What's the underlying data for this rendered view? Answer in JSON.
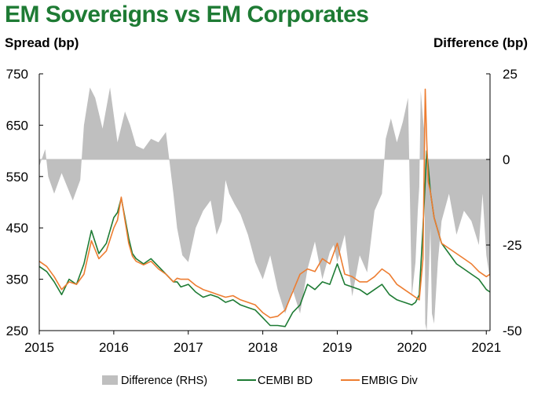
{
  "chart_data": {
    "type": "line",
    "title": "EM Sovereigns vs EM Corporates",
    "ylabel_left": "Spread (bp)",
    "ylabel_right": "Difference (bp)",
    "ylim_left": [
      250,
      750
    ],
    "yticks_left": [
      250,
      350,
      450,
      550,
      650,
      750
    ],
    "ylim_right": [
      -50,
      25
    ],
    "yticks_right": [
      -50,
      -25,
      0,
      25
    ],
    "xlim": [
      2015,
      2021.05
    ],
    "xticks": [
      2015,
      2016,
      2017,
      2018,
      2019,
      2020,
      2021
    ],
    "xtick_labels": [
      "2015",
      "2016",
      "2017",
      "2018",
      "2019",
      "2020",
      "2021"
    ],
    "legend_position": "bottom",
    "series": [
      {
        "name": "Difference (RHS)",
        "axis": "right",
        "kind": "area",
        "color": "#bfbfbf",
        "x": [
          2015.0,
          2015.08,
          2015.12,
          2015.2,
          2015.3,
          2015.45,
          2015.55,
          2015.6,
          2015.68,
          2015.75,
          2015.85,
          2015.95,
          2016.05,
          2016.15,
          2016.22,
          2016.3,
          2016.4,
          2016.5,
          2016.6,
          2016.7,
          2016.8,
          2016.85,
          2016.92,
          2017.0,
          2017.1,
          2017.2,
          2017.3,
          2017.38,
          2017.45,
          2017.5,
          2017.55,
          2017.62,
          2017.7,
          2017.8,
          2017.9,
          2018.0,
          2018.1,
          2018.2,
          2018.3,
          2018.4,
          2018.5,
          2018.6,
          2018.7,
          2018.8,
          2018.9,
          2018.95,
          2019.0,
          2019.1,
          2019.2,
          2019.3,
          2019.4,
          2019.5,
          2019.6,
          2019.65,
          2019.72,
          2019.8,
          2019.88,
          2019.95,
          2020.0,
          2020.05,
          2020.08,
          2020.1,
          2020.12,
          2020.15,
          2020.17,
          2020.18,
          2020.2,
          2020.22,
          2020.25,
          2020.27,
          2020.3,
          2020.35,
          2020.4,
          2020.5,
          2020.6,
          2020.7,
          2020.8,
          2020.9,
          2020.95,
          2021.0,
          2021.05
        ],
        "values": [
          -2,
          3,
          -5,
          -10,
          -4,
          -12,
          -6,
          10,
          21,
          18,
          9,
          21,
          5,
          14,
          10,
          4,
          3,
          6,
          5,
          8,
          -10,
          -20,
          -28,
          -30,
          -20,
          -15,
          -12,
          -22,
          -18,
          -6,
          -10,
          -13,
          -16,
          -22,
          -30,
          -35,
          -28,
          -38,
          -45,
          -38,
          -45,
          -32,
          -24,
          -35,
          -27,
          -25,
          -30,
          -22,
          -40,
          -28,
          -33,
          -15,
          -10,
          6,
          12,
          5,
          11,
          18,
          -40,
          -30,
          -15,
          -8,
          20,
          12,
          8,
          -48,
          -50,
          -38,
          -20,
          -45,
          -48,
          -30,
          -18,
          -10,
          -22,
          -15,
          -18,
          -25,
          -10,
          -28,
          -35
        ]
      },
      {
        "name": "CEMBI BD",
        "axis": "left",
        "kind": "line",
        "color": "#1e7b34",
        "x": [
          2015.0,
          2015.1,
          2015.2,
          2015.3,
          2015.4,
          2015.5,
          2015.6,
          2015.7,
          2015.8,
          2015.9,
          2016.0,
          2016.05,
          2016.1,
          2016.15,
          2016.2,
          2016.25,
          2016.3,
          2016.4,
          2016.5,
          2016.6,
          2016.7,
          2016.8,
          2016.85,
          2016.9,
          2017.0,
          2017.1,
          2017.2,
          2017.3,
          2017.4,
          2017.5,
          2017.6,
          2017.7,
          2017.8,
          2017.9,
          2018.0,
          2018.1,
          2018.2,
          2018.3,
          2018.4,
          2018.5,
          2018.6,
          2018.7,
          2018.8,
          2018.9,
          2019.0,
          2019.1,
          2019.2,
          2019.3,
          2019.4,
          2019.5,
          2019.6,
          2019.7,
          2019.8,
          2019.9,
          2020.0,
          2020.05,
          2020.1,
          2020.15,
          2020.2,
          2020.22,
          2020.25,
          2020.3,
          2020.4,
          2020.5,
          2020.6,
          2020.7,
          2020.8,
          2020.9,
          2021.0,
          2021.05
        ],
        "values": [
          375,
          365,
          345,
          320,
          350,
          340,
          380,
          445,
          400,
          420,
          470,
          480,
          508,
          470,
          430,
          400,
          390,
          380,
          390,
          375,
          360,
          345,
          345,
          335,
          340,
          325,
          315,
          320,
          315,
          305,
          310,
          300,
          295,
          290,
          275,
          260,
          260,
          258,
          285,
          300,
          340,
          330,
          345,
          340,
          380,
          340,
          335,
          330,
          320,
          330,
          340,
          320,
          310,
          305,
          300,
          305,
          320,
          450,
          600,
          570,
          520,
          470,
          420,
          400,
          380,
          370,
          360,
          350,
          330,
          325
        ]
      },
      {
        "name": "EMBIG Div",
        "axis": "left",
        "kind": "line",
        "color": "#ed7d31",
        "x": [
          2015.0,
          2015.1,
          2015.2,
          2015.3,
          2015.4,
          2015.5,
          2015.6,
          2015.7,
          2015.8,
          2015.9,
          2016.0,
          2016.05,
          2016.1,
          2016.15,
          2016.2,
          2016.25,
          2016.3,
          2016.4,
          2016.5,
          2016.6,
          2016.7,
          2016.8,
          2016.85,
          2016.9,
          2017.0,
          2017.1,
          2017.2,
          2017.3,
          2017.4,
          2017.5,
          2017.6,
          2017.7,
          2017.8,
          2017.9,
          2018.0,
          2018.1,
          2018.2,
          2018.3,
          2018.4,
          2018.5,
          2018.6,
          2018.7,
          2018.8,
          2018.9,
          2019.0,
          2019.1,
          2019.2,
          2019.3,
          2019.4,
          2019.5,
          2019.6,
          2019.7,
          2019.8,
          2019.9,
          2020.0,
          2020.05,
          2020.1,
          2020.15,
          2020.18,
          2020.2,
          2020.22,
          2020.25,
          2020.3,
          2020.4,
          2020.5,
          2020.6,
          2020.7,
          2020.8,
          2020.9,
          2021.0,
          2021.05
        ],
        "values": [
          385,
          375,
          355,
          330,
          345,
          340,
          360,
          425,
          390,
          405,
          450,
          465,
          510,
          465,
          420,
          395,
          385,
          378,
          385,
          370,
          360,
          345,
          352,
          350,
          350,
          338,
          330,
          325,
          320,
          315,
          318,
          310,
          305,
          300,
          285,
          275,
          278,
          290,
          325,
          360,
          370,
          365,
          390,
          380,
          420,
          360,
          355,
          345,
          345,
          355,
          370,
          360,
          340,
          330,
          320,
          315,
          310,
          390,
          720,
          620,
          540,
          520,
          470,
          420,
          410,
          400,
          390,
          380,
          365,
          355,
          360
        ]
      }
    ]
  },
  "legend": [
    {
      "label": "Difference (RHS)",
      "swatch": "bar",
      "color": "#bfbfbf"
    },
    {
      "label": "CEMBI BD",
      "swatch": "line",
      "color": "#1e7b34"
    },
    {
      "label": "EMBIG Div",
      "swatch": "line",
      "color": "#ed7d31"
    }
  ]
}
